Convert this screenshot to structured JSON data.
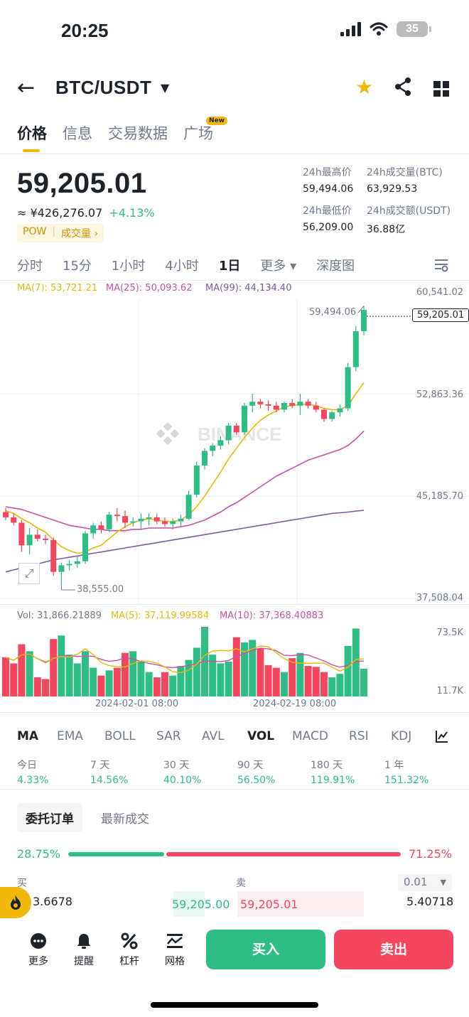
{
  "status": {
    "time": "20:25",
    "battery": "35"
  },
  "header": {
    "pair": "BTC/USDT"
  },
  "tabs": [
    {
      "label": "价格"
    },
    {
      "label": "信息"
    },
    {
      "label": "交易数据"
    },
    {
      "label": "广场",
      "badge": "New"
    }
  ],
  "ticker": {
    "price": "59,205.01",
    "cny": "≈ ¥426,276.07",
    "change": "+4.13%",
    "tag": "POW",
    "tag2": "成交量 ›",
    "high_label": "24h最高价",
    "high": "59,494.06",
    "vol_btc_label": "24h成交量(BTC)",
    "vol_btc": "63,929.53",
    "low_label": "24h最低价",
    "low": "56,209.00",
    "vol_usdt_label": "24h成交额(USDT)",
    "vol_usdt": "36.88亿"
  },
  "intervals": [
    "分时",
    "15分",
    "1小时",
    "4小时",
    "1日",
    "更多 ▾",
    "深度图"
  ],
  "chart": {
    "ma7": "MA(7): 53,721.21",
    "ma25": "MA(25): 50,093.62",
    "ma99": "MA(99): 44,134.40",
    "y_labels": [
      "60,541.02",
      "52,863.36",
      "45,185.70",
      "37,508.04"
    ],
    "current_price": "59,205.01",
    "high_marker": "59,494.06",
    "low_marker": "38,555.00",
    "watermark": "BINANCE",
    "vol_label": "Vol: 31,866.21889",
    "vol_ma5": "MA(5): 37,119.99584",
    "vol_ma10": "MA(10): 37,368.40883",
    "vol_y": [
      "73.5K",
      "11.7K"
    ],
    "x_labels": [
      "2024-02-01 08:00",
      "2024-02-19 08:00"
    ],
    "colors": {
      "up": "#2ebd85",
      "down": "#f6465d",
      "ma7": "#e8b90b",
      "ma25": "#c951a8",
      "ma99": "#7a5ba6"
    }
  },
  "chart_data": {
    "type": "candlestick",
    "ylim": [
      37508.04,
      60541.02
    ],
    "candles": [
      [
        44000,
        44300,
        43400,
        43600
      ],
      [
        43600,
        43900,
        43000,
        43200
      ],
      [
        43200,
        43400,
        41000,
        41500
      ],
      [
        41500,
        42800,
        40800,
        42300
      ],
      [
        42300,
        42700,
        41800,
        42000
      ],
      [
        42000,
        42300,
        41600,
        41900
      ],
      [
        41900,
        42100,
        39200,
        39500
      ],
      [
        39500,
        40200,
        38555,
        40000
      ],
      [
        40000,
        40400,
        39600,
        40100
      ],
      [
        40100,
        40700,
        39800,
        40300
      ],
      [
        40300,
        42600,
        40100,
        42400
      ],
      [
        42400,
        43200,
        42000,
        43000
      ],
      [
        43000,
        43300,
        42400,
        42700
      ],
      [
        42700,
        44000,
        42500,
        43800
      ],
      [
        43800,
        44300,
        43300,
        43700
      ],
      [
        43700,
        44100,
        42800,
        43200
      ],
      [
        43200,
        43600,
        42900,
        43300
      ],
      [
        43300,
        43900,
        42700,
        43500
      ],
      [
        43500,
        43900,
        43000,
        43600
      ],
      [
        43600,
        43900,
        43100,
        43300
      ],
      [
        43300,
        43600,
        42900,
        43100
      ],
      [
        43100,
        43500,
        42700,
        43300
      ],
      [
        43300,
        43800,
        42900,
        43500
      ],
      [
        43500,
        45600,
        43400,
        45300
      ],
      [
        45300,
        47800,
        45100,
        47500
      ],
      [
        47500,
        48800,
        47200,
        48600
      ],
      [
        48600,
        49200,
        48200,
        49000
      ],
      [
        49000,
        49700,
        48700,
        49400
      ],
      [
        49400,
        50700,
        49100,
        50500
      ],
      [
        50500,
        50700,
        49800,
        50000
      ],
      [
        50000,
        52200,
        49800,
        52000
      ],
      [
        52000,
        52900,
        51500,
        52300
      ],
      [
        52300,
        52500,
        51800,
        52100
      ],
      [
        52100,
        52400,
        51600,
        52000
      ],
      [
        52000,
        52300,
        51500,
        51700
      ],
      [
        51700,
        52300,
        51500,
        52200
      ],
      [
        52200,
        52500,
        51800,
        52000
      ],
      [
        52000,
        52900,
        51300,
        52300
      ],
      [
        52300,
        52500,
        51800,
        52000
      ],
      [
        52000,
        52300,
        51500,
        51700
      ],
      [
        51700,
        51800,
        50800,
        51000
      ],
      [
        51000,
        51600,
        50800,
        51500
      ],
      [
        51500,
        52100,
        51200,
        51800
      ],
      [
        51800,
        55200,
        51600,
        54900
      ],
      [
        54900,
        58000,
        54600,
        57600
      ],
      [
        57600,
        59494,
        57300,
        59205
      ]
    ],
    "ma7": [
      44100,
      43900,
      43500,
      43200,
      42800,
      42500,
      41900,
      41400,
      41100,
      40900,
      41000,
      41300,
      41500,
      42000,
      42500,
      42900,
      43200,
      43400,
      43500,
      43400,
      43300,
      43300,
      43400,
      43800,
      44400,
      45200,
      46100,
      47000,
      48000,
      48800,
      49600,
      50300,
      50900,
      51300,
      51600,
      51900,
      52000,
      52100,
      52100,
      52000,
      51800,
      51700,
      51700,
      52000,
      52900,
      53721
    ],
    "ma25": [
      44400,
      44300,
      44200,
      44000,
      43800,
      43600,
      43400,
      43200,
      43000,
      42900,
      42800,
      42700,
      42700,
      42600,
      42600,
      42600,
      42700,
      42700,
      42800,
      42800,
      42800,
      42800,
      42900,
      43000,
      43200,
      43400,
      43700,
      44000,
      44400,
      44700,
      45100,
      45500,
      45900,
      46300,
      46700,
      47000,
      47300,
      47600,
      47900,
      48100,
      48300,
      48500,
      48700,
      49000,
      49500,
      50094
    ],
    "ma99": [
      39500,
      39650,
      39800,
      39950,
      40100,
      40250,
      40400,
      40500,
      40600,
      40700,
      40800,
      40900,
      41000,
      41100,
      41200,
      41300,
      41400,
      41500,
      41600,
      41700,
      41800,
      41900,
      42000,
      42100,
      42200,
      42300,
      42400,
      42500,
      42600,
      42700,
      42800,
      42900,
      43000,
      43100,
      43200,
      43300,
      43400,
      43500,
      43600,
      43700,
      43800,
      43900,
      43950,
      44000,
      44070,
      44134
    ],
    "volume": [
      45000,
      38000,
      60000,
      52000,
      22000,
      20000,
      66000,
      70000,
      48000,
      38000,
      52000,
      33000,
      24000,
      30000,
      33000,
      50000,
      52000,
      40000,
      28000,
      22000,
      28000,
      24000,
      35000,
      42000,
      56000,
      80000,
      48000,
      38000,
      40000,
      68000,
      62000,
      65000,
      55000,
      36000,
      33000,
      28000,
      44000,
      50000,
      35000,
      34000,
      28000,
      22000,
      26000,
      58000,
      78000,
      31866
    ],
    "vol_ylim": [
      0,
      80000
    ],
    "x_tick_candles": [
      18,
      36
    ]
  },
  "indicators": [
    "MA",
    "EMA",
    "BOLL",
    "SAR",
    "AVL",
    "VOL",
    "MACD",
    "RSI",
    "KDJ"
  ],
  "performance": [
    {
      "label": "今日",
      "value": "4.33%"
    },
    {
      "label": "7 天",
      "value": "14.56%"
    },
    {
      "label": "30 天",
      "value": "40.10%"
    },
    {
      "label": "90 天",
      "value": "56.50%"
    },
    {
      "label": "180 天",
      "value": "119.91%"
    },
    {
      "label": "1 年",
      "value": "151.32%"
    }
  ],
  "orderbook": {
    "tab_active": "委托订单",
    "tab_other": "最新成交",
    "buy_pct": "28.75%",
    "sell_pct": "71.25%",
    "buy_label": "买",
    "sell_label": "卖",
    "step": "0.01",
    "bid_qty": "3.6678",
    "bid_price": "59,205.00",
    "ask_price": "59,205.01",
    "ask_qty": "5.40718"
  },
  "bottom": {
    "more": "更多",
    "alert": "提醒",
    "leverage": "杠杆",
    "grid": "网格",
    "buy": "买入",
    "sell": "卖出"
  }
}
